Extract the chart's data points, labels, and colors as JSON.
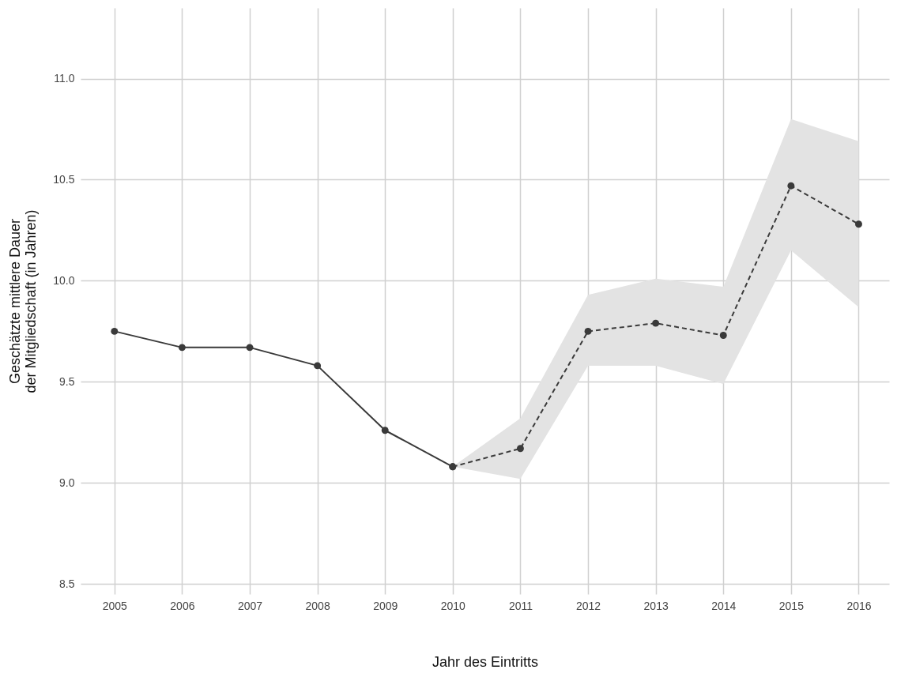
{
  "chart_data": {
    "type": "line",
    "xlabel": "Jahr des Eintritts",
    "ylabel": "Geschätzte mittlere Dauer\nder Mitgliedschaft (in Jahren)",
    "series": [
      {
        "color": "#3a3a3a",
        "line_style": "solid",
        "x": [
          2005,
          2006,
          2007,
          2008,
          2009,
          2010
        ],
        "values": [
          9.75,
          9.67,
          9.67,
          9.58,
          9.26,
          9.08
        ]
      },
      {
        "color": "#3a3a3a",
        "line_style": "dashed",
        "x": [
          2010,
          2011,
          2012,
          2013,
          2014,
          2015,
          2016
        ],
        "values": [
          9.08,
          9.17,
          9.75,
          9.79,
          9.73,
          10.47,
          10.28
        ],
        "lower": [
          9.08,
          9.02,
          9.58,
          9.58,
          9.49,
          10.15,
          9.87
        ],
        "upper": [
          9.08,
          9.32,
          9.93,
          10.01,
          9.97,
          10.8,
          10.69
        ]
      }
    ],
    "xlim": [
      2004.5,
      2016.45
    ],
    "xticks": [
      2005,
      2006,
      2007,
      2008,
      2009,
      2010,
      2011,
      2012,
      2013,
      2014,
      2015,
      2016
    ],
    "ylim": [
      8.45,
      11.35
    ],
    "yticks": [
      {
        "value": 8.5,
        "label": "8.5"
      },
      {
        "value": 9,
        "label": "9.0"
      },
      {
        "value": 9.5,
        "label": "9.5"
      },
      {
        "value": 10,
        "label": "10.0"
      },
      {
        "value": 10.5,
        "label": "10.5"
      },
      {
        "value": 11,
        "label": "11.0"
      }
    ],
    "grid": true,
    "marker": "circle"
  }
}
